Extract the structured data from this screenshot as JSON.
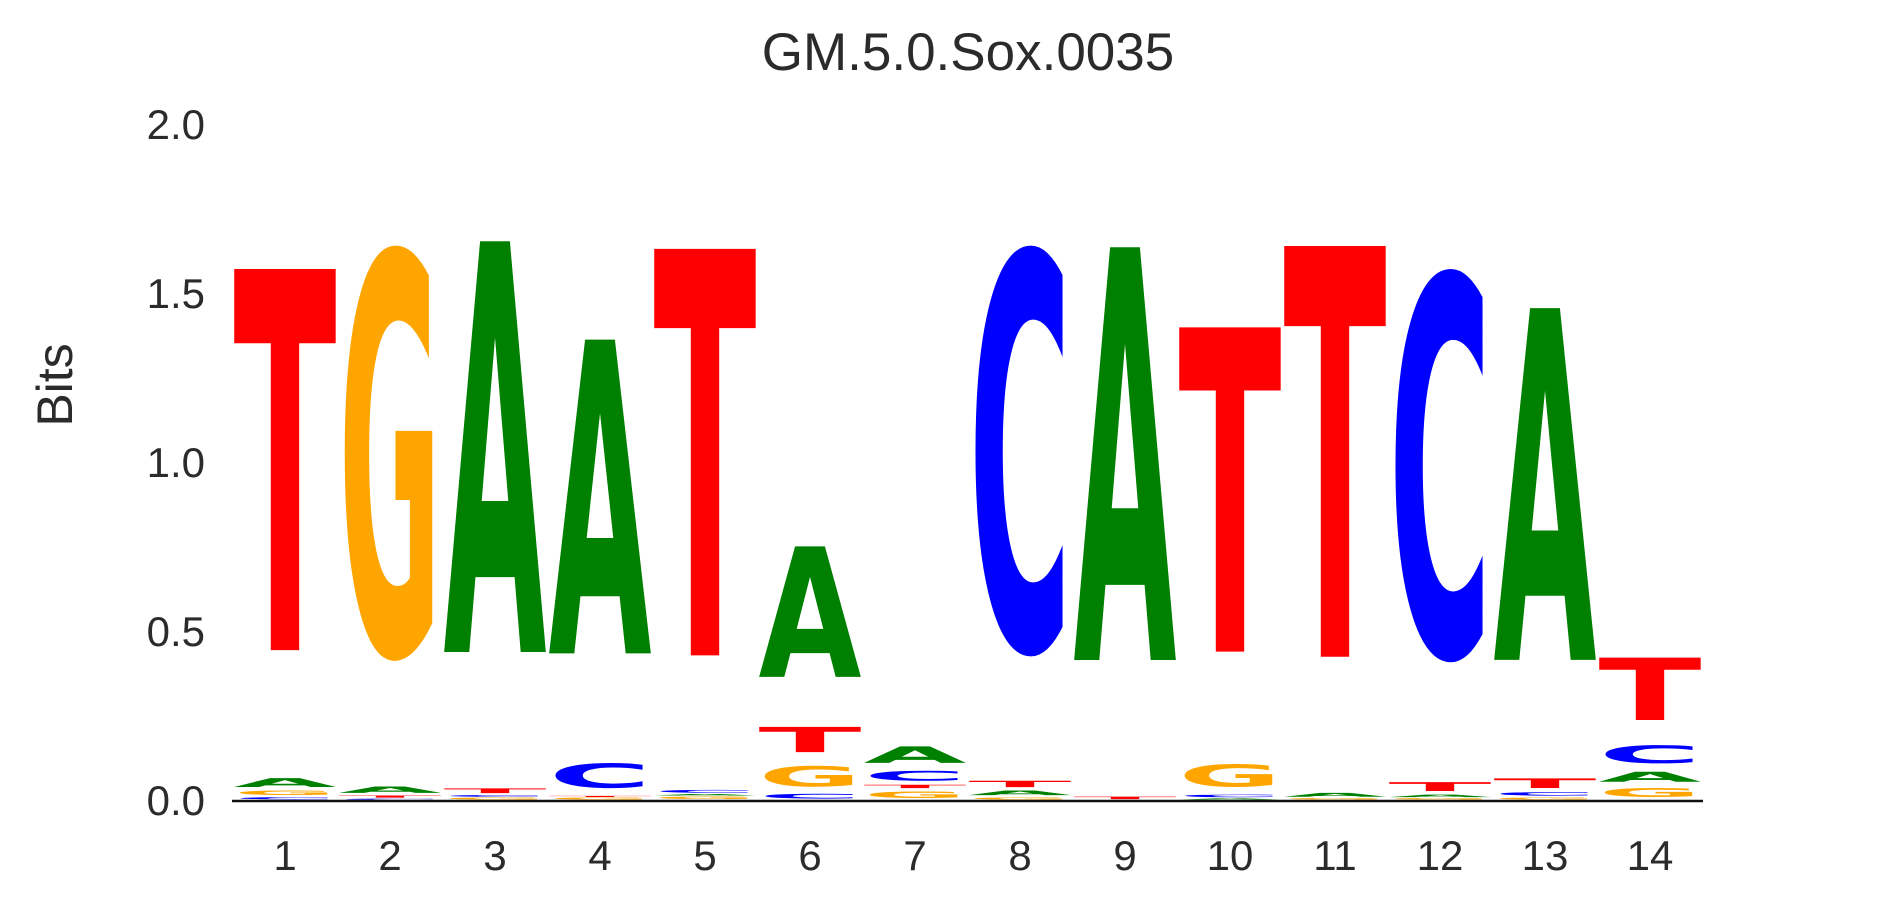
{
  "title": "GM.5.0.Sox.0035",
  "axes": {
    "ylabel": "Bits",
    "ytick_labels": [
      "0.0",
      "0.5",
      "1.0",
      "1.5",
      "2.0"
    ],
    "xtick_labels": [
      "1",
      "2",
      "3",
      "4",
      "5",
      "6",
      "7",
      "8",
      "9",
      "10",
      "11",
      "12",
      "13",
      "14"
    ]
  },
  "colors": {
    "text": "#2b2b2b",
    "baseline": "#111111",
    "A": "#008000",
    "C": "#0000FF",
    "G": "#FFA500",
    "T": "#FF0000"
  },
  "chart_data": {
    "type": "bar",
    "subtype": "sequence_logo",
    "title": "GM.5.0.Sox.0035",
    "xlabel": "",
    "ylabel": "Bits",
    "ylim": [
      0,
      2.0
    ],
    "yticks": [
      0.0,
      0.5,
      1.0,
      1.5,
      2.0
    ],
    "positions": [
      1,
      2,
      3,
      4,
      5,
      6,
      7,
      8,
      9,
      10,
      11,
      12,
      13,
      14
    ],
    "legend": "none",
    "grid": false,
    "letter_colors": {
      "A": "#008000",
      "C": "#0000FF",
      "G": "#FFA500",
      "T": "#FF0000"
    },
    "stacks_note": "per position, letters bottom-to-top with height in bits",
    "stacks": [
      [
        [
          "C",
          0.01
        ],
        [
          "G",
          0.02
        ],
        [
          "A",
          0.042
        ],
        [
          "T",
          1.81
        ]
      ],
      [
        [
          "C",
          0.005
        ],
        [
          "T",
          0.01
        ],
        [
          "A",
          0.03
        ],
        [
          "G",
          1.9
        ]
      ],
      [
        [
          "G",
          0.008
        ],
        [
          "C",
          0.008
        ],
        [
          "T",
          0.022
        ],
        [
          "A",
          1.95
        ]
      ],
      [
        [
          "G",
          0.008
        ],
        [
          "T",
          0.005
        ],
        [
          "C",
          0.115
        ],
        [
          "A",
          1.49
        ]
      ],
      [
        [
          "G",
          0.012
        ],
        [
          "A",
          0.007
        ],
        [
          "C",
          0.013
        ],
        [
          "T",
          1.93
        ]
      ],
      [
        [
          "C",
          0.022
        ],
        [
          "G",
          0.095
        ],
        [
          "T",
          0.12
        ],
        [
          "A",
          0.62
        ]
      ],
      [
        [
          "G",
          0.032
        ],
        [
          "T",
          0.016
        ],
        [
          "C",
          0.046
        ],
        [
          "A",
          0.078
        ]
      ],
      [
        [
          "G",
          0.01
        ],
        [
          "A",
          0.022
        ],
        [
          "T",
          0.03
        ],
        [
          "C",
          1.88
        ]
      ],
      [
        [
          "T",
          0.012
        ],
        [
          "A",
          1.96
        ]
      ],
      [
        [
          "A",
          0.006
        ],
        [
          "C",
          0.012
        ],
        [
          "G",
          0.105
        ],
        [
          "T",
          1.54
        ]
      ],
      [
        [
          "G",
          0.006
        ],
        [
          "A",
          0.018
        ],
        [
          "T",
          1.95
        ]
      ],
      [
        [
          "G",
          0.006
        ],
        [
          "A",
          0.012
        ],
        [
          "T",
          0.042
        ],
        [
          "C",
          1.8
        ]
      ],
      [
        [
          "G",
          0.01
        ],
        [
          "C",
          0.016
        ],
        [
          "T",
          0.046
        ],
        [
          "A",
          1.67
        ]
      ],
      [
        [
          "G",
          0.044
        ],
        [
          "A",
          0.048
        ],
        [
          "C",
          0.084
        ],
        [
          "T",
          0.296
        ]
      ]
    ]
  }
}
